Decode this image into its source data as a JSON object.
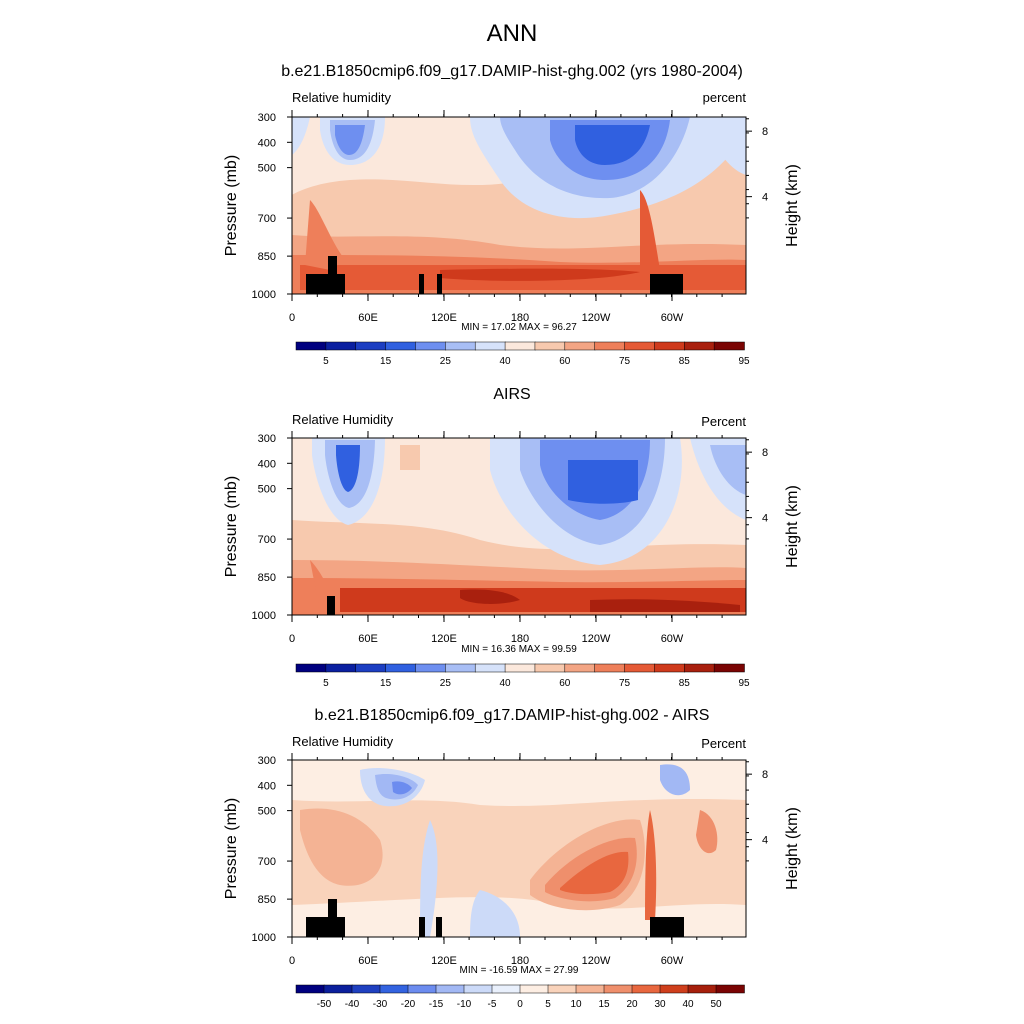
{
  "title": "ANN",
  "panels": [
    {
      "title": "b.e21.B1850cmip6.f09_g17.DAMIP-hist-ghg.002 (yrs 1980-2004)",
      "var_label": "Relative humidity",
      "unit_label": "percent",
      "stats": "MIN =  17.02  MAX =  96.27",
      "chart_data": {
        "type": "heatmap",
        "xlabel": "",
        "ylabel": "Pressure (mb)",
        "ylabel_right": "Height (km)",
        "x_ticks": [
          "0",
          "60E",
          "120E",
          "180",
          "120W",
          "60W"
        ],
        "y_ticks": [
          "300",
          "400",
          "500",
          "700",
          "850",
          "1000"
        ],
        "y_ticks_right": [
          "8",
          "4"
        ],
        "value_range": [
          17.02,
          96.27
        ],
        "colorbar_labels": [
          "5",
          "15",
          "25",
          "40",
          "60",
          "75",
          "85",
          "95"
        ]
      }
    },
    {
      "title": "AIRS",
      "var_label": "Relative Humidity",
      "unit_label": "Percent",
      "stats": "MIN =  16.36  MAX =  99.59",
      "chart_data": {
        "type": "heatmap",
        "xlabel": "",
        "ylabel": "Pressure (mb)",
        "ylabel_right": "Height (km)",
        "x_ticks": [
          "0",
          "60E",
          "120E",
          "180",
          "120W",
          "60W"
        ],
        "y_ticks": [
          "300",
          "400",
          "500",
          "700",
          "850",
          "1000"
        ],
        "y_ticks_right": [
          "8",
          "4"
        ],
        "value_range": [
          16.36,
          99.59
        ],
        "colorbar_labels": [
          "5",
          "15",
          "25",
          "40",
          "60",
          "75",
          "85",
          "95"
        ]
      }
    },
    {
      "title": "b.e21.B1850cmip6.f09_g17.DAMIP-hist-ghg.002 - AIRS",
      "var_label": "Relative Humidity",
      "unit_label": "Percent",
      "stats": "MIN = -16.59  MAX =  27.99",
      "chart_data": {
        "type": "heatmap",
        "xlabel": "",
        "ylabel": "Pressure (mb)",
        "ylabel_right": "Height (km)",
        "x_ticks": [
          "0",
          "60E",
          "120E",
          "180",
          "120W",
          "60W"
        ],
        "y_ticks": [
          "300",
          "400",
          "500",
          "700",
          "850",
          "1000"
        ],
        "y_ticks_right": [
          "8",
          "4"
        ],
        "value_range": [
          -16.59,
          27.99
        ],
        "colorbar_labels": [
          "-50",
          "-40",
          "-30",
          "-20",
          "-15",
          "-10",
          "-5",
          "0",
          "5",
          "10",
          "15",
          "20",
          "30",
          "40",
          "50"
        ]
      }
    }
  ],
  "colors": {
    "abs_colorbar": [
      "#00007f",
      "#0a1fa0",
      "#1c3ec2",
      "#3060e0",
      "#6e8ff0",
      "#a8bef5",
      "#d6e2fa",
      "#fbe8dc",
      "#f7c9ae",
      "#f3a584",
      "#ee7f5a",
      "#e55a36",
      "#cf3a1c",
      "#a9200e",
      "#7a0403"
    ],
    "diff_colorbar": [
      "#00007f",
      "#0b1f9c",
      "#1f40c0",
      "#3363e0",
      "#6c8cef",
      "#a2b8f4",
      "#ccdaf8",
      "#e9f0fc",
      "#fdeee3",
      "#f9d3bb",
      "#f4b394",
      "#ef8f6c",
      "#e8673f",
      "#cf3f1c",
      "#a61f0c",
      "#7a0403"
    ],
    "land_mask": "#000000"
  }
}
